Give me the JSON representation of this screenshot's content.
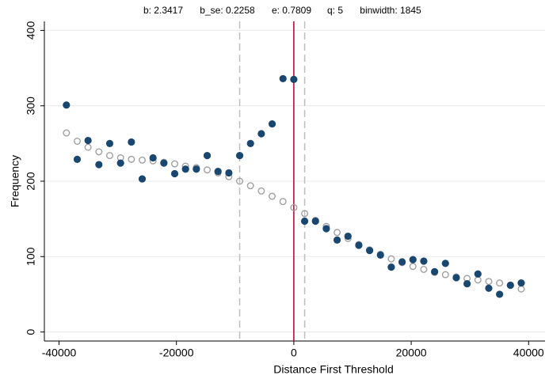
{
  "chart_data": {
    "type": "scatter",
    "stats": [
      "b: 2.3417",
      "b_se: 0.2258",
      "e: 0.7809",
      "q: 5",
      "binwidth: 1845"
    ],
    "x_label": "Distance First Threshold",
    "y_label": "Frequency",
    "xlim": [
      -42500,
      42800
    ],
    "ylim": [
      -12,
      412
    ],
    "xticks": [
      -40000,
      -20000,
      0,
      20000,
      40000
    ],
    "yticks": [
      0,
      100,
      200,
      300,
      400
    ],
    "grid": true,
    "x": [
      -38745,
      -36900,
      -35055,
      -33210,
      -31365,
      -29520,
      -27675,
      -25830,
      -23985,
      -22140,
      -20295,
      -18450,
      -16605,
      -14760,
      -12915,
      -11070,
      -9225,
      -7380,
      -5535,
      -3690,
      -1845,
      0,
      1845,
      3690,
      5535,
      7380,
      9225,
      11070,
      12915,
      14760,
      16605,
      18450,
      20295,
      22140,
      23985,
      25830,
      27675,
      29520,
      31365,
      33210,
      35055,
      36900,
      38745
    ],
    "series": [
      {
        "color": "#1a476f",
        "filled": true,
        "values": [
          301,
          229,
          254,
          222,
          250,
          224,
          252,
          203,
          231,
          224,
          210,
          216,
          216,
          234,
          213,
          211,
          234,
          250,
          263,
          276,
          336,
          335,
          147,
          147,
          137,
          122,
          127,
          115,
          108,
          102,
          86,
          93,
          96,
          94,
          80,
          91,
          72,
          64,
          77,
          58,
          50,
          62,
          65
        ]
      },
      {
        "color": "#a0a0a0",
        "filled": false,
        "values": [
          264,
          253,
          245,
          239,
          234,
          231,
          229,
          228,
          227,
          225,
          223,
          220,
          218,
          215,
          211,
          206,
          200,
          194,
          187,
          180,
          173,
          165,
          157,
          148,
          140,
          132,
          124,
          116,
          109,
          103,
          97,
          92,
          87,
          83,
          79,
          76,
          73,
          71,
          69,
          67,
          65,
          62,
          57
        ]
      }
    ],
    "vlines": [
      {
        "x": 0,
        "color": "#b2002c",
        "dashed": false
      },
      {
        "x": -9225,
        "color": "#bdbdbd",
        "dashed": true
      },
      {
        "x": 1845,
        "color": "#bdbdbd",
        "dashed": true
      }
    ]
  }
}
